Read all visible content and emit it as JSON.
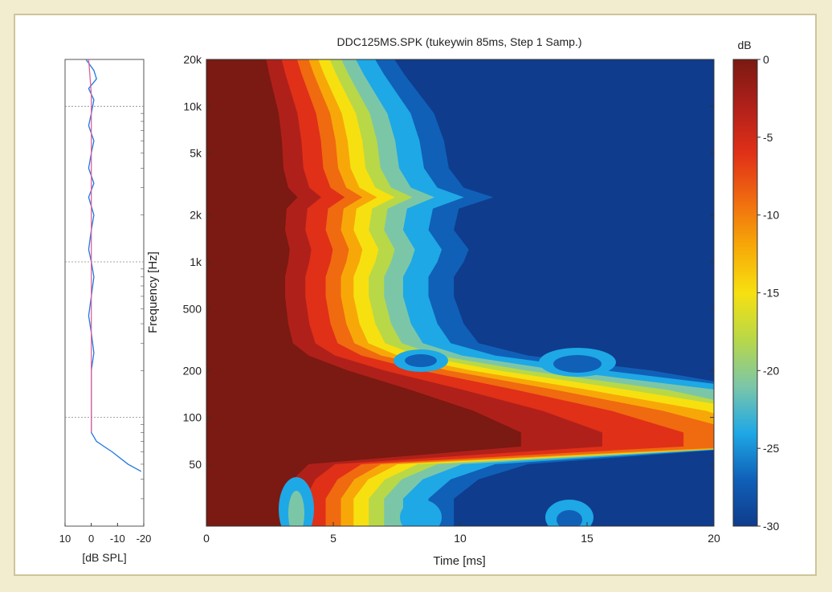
{
  "chart_data": [
    {
      "type": "line",
      "xlabel": "[dB SPL]",
      "x_tick_labels": [
        "10",
        "0",
        "-10",
        "-20"
      ],
      "xlim": [
        10,
        -20
      ],
      "ylim_hz": [
        20,
        20000
      ],
      "y_scale": "log",
      "grid": true,
      "series": [
        {
          "color": "#1f77e0",
          "points": [
            {
              "f": 20000,
              "db": 2
            },
            {
              "f": 17000,
              "db": -1
            },
            {
              "f": 15000,
              "db": -2
            },
            {
              "f": 13000,
              "db": 1
            },
            {
              "f": 11000,
              "db": -1
            },
            {
              "f": 9000,
              "db": 0
            },
            {
              "f": 7500,
              "db": 1
            },
            {
              "f": 6000,
              "db": -1
            },
            {
              "f": 5000,
              "db": 0
            },
            {
              "f": 4000,
              "db": 1
            },
            {
              "f": 3200,
              "db": -1
            },
            {
              "f": 2600,
              "db": 1
            },
            {
              "f": 2000,
              "db": -1
            },
            {
              "f": 1600,
              "db": 0
            },
            {
              "f": 1200,
              "db": 1
            },
            {
              "f": 1000,
              "db": 0
            },
            {
              "f": 800,
              "db": -1
            },
            {
              "f": 600,
              "db": 0
            },
            {
              "f": 450,
              "db": 1
            },
            {
              "f": 350,
              "db": 0
            },
            {
              "f": 260,
              "db": -1
            },
            {
              "f": 200,
              "db": 0
            },
            {
              "f": 150,
              "db": 0
            },
            {
              "f": 120,
              "db": 0
            },
            {
              "f": 100,
              "db": 0
            },
            {
              "f": 80,
              "db": 0
            },
            {
              "f": 70,
              "db": -2
            },
            {
              "f": 60,
              "db": -8
            },
            {
              "f": 50,
              "db": -14
            },
            {
              "f": 45,
              "db": -19
            }
          ]
        },
        {
          "color": "#e0609a",
          "points": [
            {
              "f": 20000,
              "db": 1
            },
            {
              "f": 12000,
              "db": 0
            },
            {
              "f": 6000,
              "db": 0
            },
            {
              "f": 3000,
              "db": 0
            },
            {
              "f": 1500,
              "db": 0
            },
            {
              "f": 700,
              "db": 0
            },
            {
              "f": 300,
              "db": 0
            },
            {
              "f": 150,
              "db": 0
            },
            {
              "f": 80,
              "db": 0
            }
          ]
        }
      ]
    },
    {
      "type": "heatmap",
      "title": "DDC125MS.SPK (tukeywin 85ms, Step 1 Samp.)",
      "xlabel": "Time [ms]",
      "ylabel": "Frequency [Hz]",
      "xlim": [
        0,
        20
      ],
      "ylim": [
        20,
        20000
      ],
      "y_scale": "log",
      "x_ticks": [
        0,
        5,
        10,
        15,
        20
      ],
      "y_ticks": [
        {
          "value": 50,
          "label": "50"
        },
        {
          "value": 100,
          "label": "100"
        },
        {
          "value": 200,
          "label": "200"
        },
        {
          "value": 500,
          "label": "500"
        },
        {
          "value": 1000,
          "label": "1k"
        },
        {
          "value": 2000,
          "label": "2k"
        },
        {
          "value": 5000,
          "label": "5k"
        },
        {
          "value": 10000,
          "label": "10k"
        },
        {
          "value": 20000,
          "label": "20k"
        }
      ],
      "decay_time_ms": [
        {
          "f": 20000,
          "t": 3.8
        },
        {
          "f": 16000,
          "t": 4.0
        },
        {
          "f": 12000,
          "t": 4.3
        },
        {
          "f": 9000,
          "t": 4.6
        },
        {
          "f": 6000,
          "t": 4.8
        },
        {
          "f": 4000,
          "t": 4.9
        },
        {
          "f": 3000,
          "t": 5.2
        },
        {
          "f": 2600,
          "t": 5.8
        },
        {
          "f": 2200,
          "t": 5.1
        },
        {
          "f": 1600,
          "t": 5.0
        },
        {
          "f": 1200,
          "t": 5.3
        },
        {
          "f": 1000,
          "t": 5.2
        },
        {
          "f": 800,
          "t": 5.0
        },
        {
          "f": 600,
          "t": 5.0
        },
        {
          "f": 400,
          "t": 5.2
        },
        {
          "f": 300,
          "t": 5.5
        },
        {
          "f": 250,
          "t": 6.5
        },
        {
          "f": 200,
          "t": 9.0
        },
        {
          "f": 150,
          "t": 13.0
        },
        {
          "f": 110,
          "t": 17.0
        },
        {
          "f": 80,
          "t": 20.0
        },
        {
          "f": 65,
          "t": 20.0
        },
        {
          "f": 50,
          "t": 6.5
        },
        {
          "f": 40,
          "t": 5.5
        },
        {
          "f": 30,
          "t": 5.0
        },
        {
          "f": 20,
          "t": 5.0
        }
      ],
      "colorbar": {
        "label": "dB",
        "range": [
          -30,
          0
        ],
        "ticks": [
          0,
          -5,
          -10,
          -15,
          -20,
          -25,
          -30
        ],
        "colors": [
          "#7a1a12",
          "#b0201a",
          "#e03018",
          "#f06a10",
          "#f7a808",
          "#f7e010",
          "#b8d848",
          "#7cc6a8",
          "#1ea8e6",
          "#1060b8",
          "#0f3c8c"
        ]
      }
    }
  ]
}
